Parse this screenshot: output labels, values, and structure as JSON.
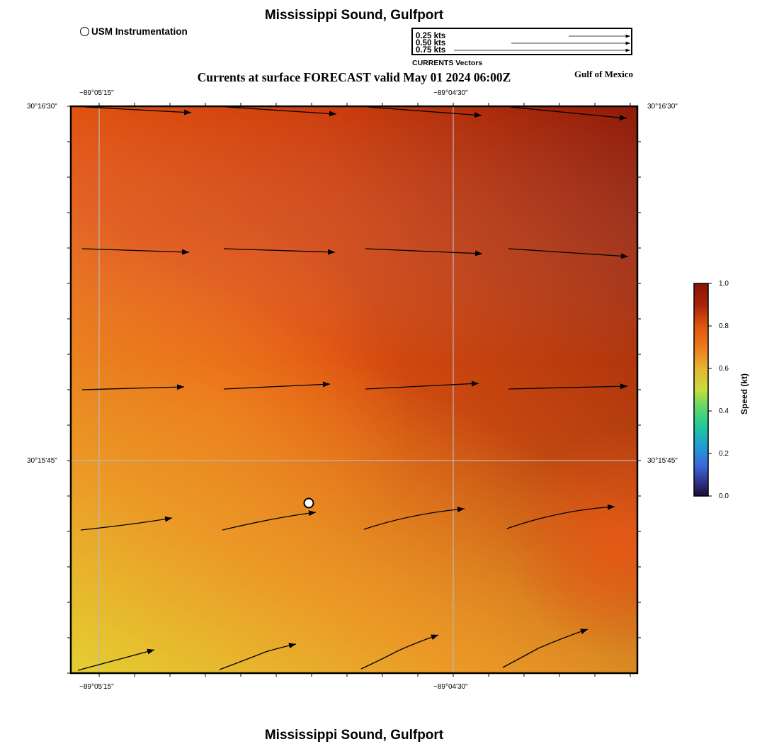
{
  "header": {
    "title": "Mississippi Sound, Gulfport",
    "subtitle": "Currents at surface FORECAST valid May 01 2024 06:00Z",
    "region_label": "Gulf of Mexico",
    "bottom_title": "Mississippi Sound, Gulfport"
  },
  "station_legend": {
    "label": "USM Instrumentation"
  },
  "vector_legend": {
    "caption": "CURRENTS Vectors",
    "entries": [
      {
        "label": "0.25 kts",
        "speed_kt": 0.25
      },
      {
        "label": "0.50 kts",
        "speed_kt": 0.5
      },
      {
        "label": "0.75 kts",
        "speed_kt": 0.75
      }
    ]
  },
  "map": {
    "lon_ticks": [
      "−89°05'15\"",
      "−89°04'30\""
    ],
    "lat_ticks": [
      "30°16'30\"",
      "30°15'45\""
    ]
  },
  "colorbar": {
    "title": "Speed (kt)",
    "ticks": [
      "1.0",
      "0.8",
      "0.6",
      "0.4",
      "0.2",
      "0.0"
    ],
    "colors": [
      "#8a1407",
      "#c43710",
      "#f06a16",
      "#e9a132",
      "#dfd43a",
      "#8ed454",
      "#2fd27c",
      "#21a6c8",
      "#3b64d5",
      "#2b2a77",
      "#1c0f35"
    ]
  },
  "vectors": {
    "rows": [
      {
        "points": [
          [
            0.02,
            0.018
          ],
          [
            0.21,
            0.012
          ],
          [
            0.473,
            0.012
          ],
          [
            0.73,
            0.018
          ],
          [
            0.98,
            0.03
          ]
        ]
      },
      {
        "points": [
          [
            0.02,
            0.25
          ],
          [
            0.21,
            0.25
          ],
          [
            0.473,
            0.25
          ],
          [
            0.73,
            0.25
          ],
          [
            0.98,
            0.263
          ]
        ]
      },
      {
        "points": [
          [
            0.02,
            0.5
          ],
          [
            0.21,
            0.497
          ],
          [
            0.473,
            0.49
          ],
          [
            0.73,
            0.49
          ],
          [
            0.98,
            0.493
          ]
        ]
      }
    ]
  }
}
